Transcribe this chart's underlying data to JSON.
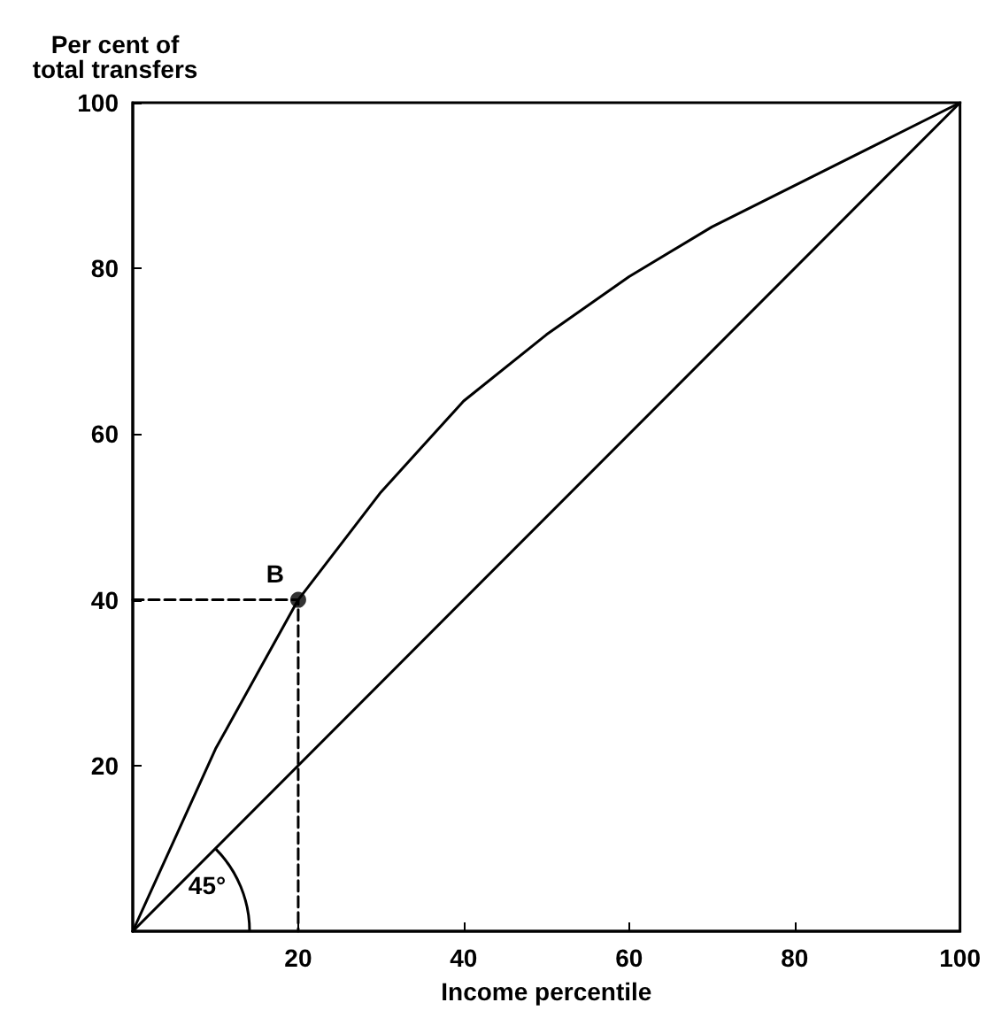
{
  "chart_data": {
    "type": "line",
    "xlabel": "Income percentile",
    "ylabel": "Per cent of\ntotal transfers",
    "xlim": [
      0,
      100
    ],
    "ylim": [
      0,
      100
    ],
    "xticks": [
      20,
      40,
      60,
      80,
      100
    ],
    "yticks": [
      20,
      40,
      60,
      80,
      100
    ],
    "grid": false,
    "series": [
      {
        "color": "#000000",
        "marker": "none",
        "line_style": "solid",
        "x": [
          0,
          5,
          10,
          15,
          20,
          30,
          40,
          50,
          60,
          70,
          80,
          90,
          100
        ],
        "values": [
          0,
          11,
          22,
          31,
          40,
          53,
          64,
          72,
          79,
          85,
          90,
          95,
          100
        ]
      },
      {
        "color": "#000000",
        "marker": "none",
        "line_style": "solid",
        "x": [
          0,
          100
        ],
        "values": [
          0,
          100
        ]
      },
      {
        "color": "#000000",
        "marker": "none",
        "line_style": "dashed",
        "x": [
          0,
          20,
          20
        ],
        "values": [
          40,
          40,
          0
        ]
      },
      {
        "type": "scatter",
        "color": "#000000",
        "marker": "circle",
        "x": [
          20
        ],
        "values": [
          40
        ]
      }
    ],
    "annotations": [
      {
        "text": "B",
        "x": 20,
        "y": 40
      },
      "45°"
    ]
  }
}
